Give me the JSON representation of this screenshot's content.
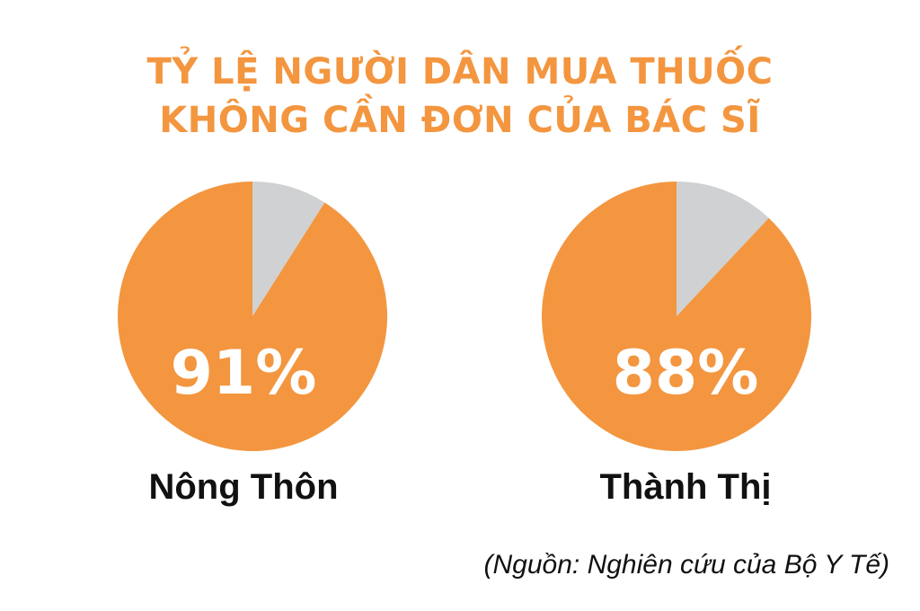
{
  "header": {
    "title_line1": "TỶ LỆ NGƯỜI DÂN MUA THUỐC",
    "title_line2": "KHÔNG CẦN ĐƠN CỦA BÁC SĨ"
  },
  "colors": {
    "accent": "#f3963f",
    "rest": "#d0d1d3",
    "title": "#f3963f"
  },
  "chart_data": [
    {
      "type": "pie",
      "title": "Nông Thôn",
      "value_label": "91%",
      "slices": [
        {
          "value": 91,
          "color": "#f3963f"
        },
        {
          "value": 9,
          "color": "#d0d1d3"
        }
      ]
    },
    {
      "type": "pie",
      "title": "Thành Thị",
      "value_label": "88%",
      "slices": [
        {
          "value": 88,
          "color": "#f3963f"
        },
        {
          "value": 12,
          "color": "#d0d1d3"
        }
      ]
    }
  ],
  "footer": {
    "source": "(Nguồn: Nghiên cứu của Bộ Y Tế)"
  }
}
